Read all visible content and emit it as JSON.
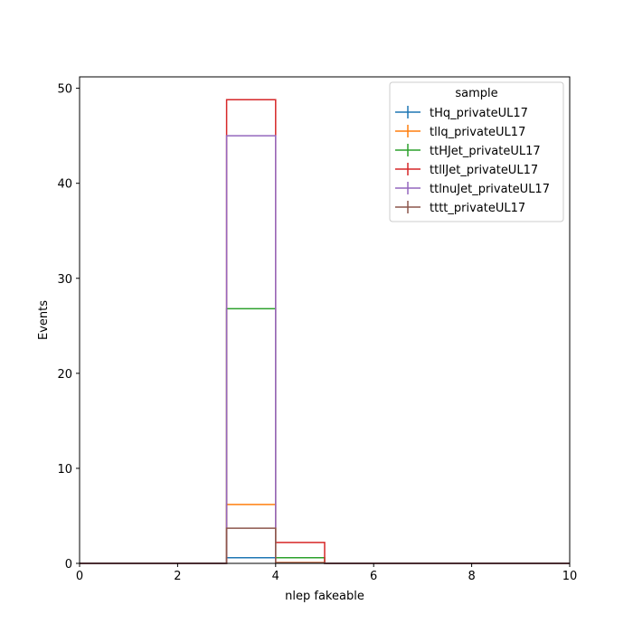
{
  "chart_data": {
    "type": "line",
    "xlabel": "nlep fakeable",
    "ylabel": "Events",
    "xlim": [
      0,
      10
    ],
    "ylim": [
      0,
      51.2
    ],
    "x_ticks": [
      "0",
      "2",
      "4",
      "6",
      "8",
      "10"
    ],
    "y_ticks": [
      "0",
      "10",
      "20",
      "30",
      "40",
      "50"
    ],
    "bin_edges": [
      0,
      1,
      2,
      3,
      4,
      5,
      6,
      7,
      8,
      9,
      10
    ],
    "legend": {
      "title": "sample",
      "position": "top-right"
    },
    "series": [
      {
        "name": "tHq_privateUL17",
        "color": "#1f77b4",
        "values": [
          0,
          0,
          0,
          0.6,
          0.03,
          0,
          0,
          0,
          0,
          0
        ]
      },
      {
        "name": "tllq_privateUL17",
        "color": "#ff7f0e",
        "values": [
          0,
          0,
          0,
          6.2,
          0.1,
          0,
          0,
          0,
          0,
          0
        ]
      },
      {
        "name": "ttHJet_privateUL17",
        "color": "#2ca02c",
        "values": [
          0,
          0,
          0,
          26.8,
          0.6,
          0,
          0,
          0,
          0,
          0
        ]
      },
      {
        "name": "ttllJet_privateUL17",
        "color": "#d62728",
        "values": [
          0,
          0,
          0,
          48.8,
          2.2,
          0,
          0,
          0,
          0,
          0
        ]
      },
      {
        "name": "ttlnuJet_privateUL17",
        "color": "#9467bd",
        "values": [
          0,
          0,
          0,
          45.0,
          0.05,
          0,
          0,
          0,
          0,
          0
        ]
      },
      {
        "name": "tttt_privateUL17",
        "color": "#8c564b",
        "values": [
          0,
          0,
          0,
          3.7,
          0.05,
          0,
          0,
          0,
          0,
          0
        ]
      }
    ]
  }
}
